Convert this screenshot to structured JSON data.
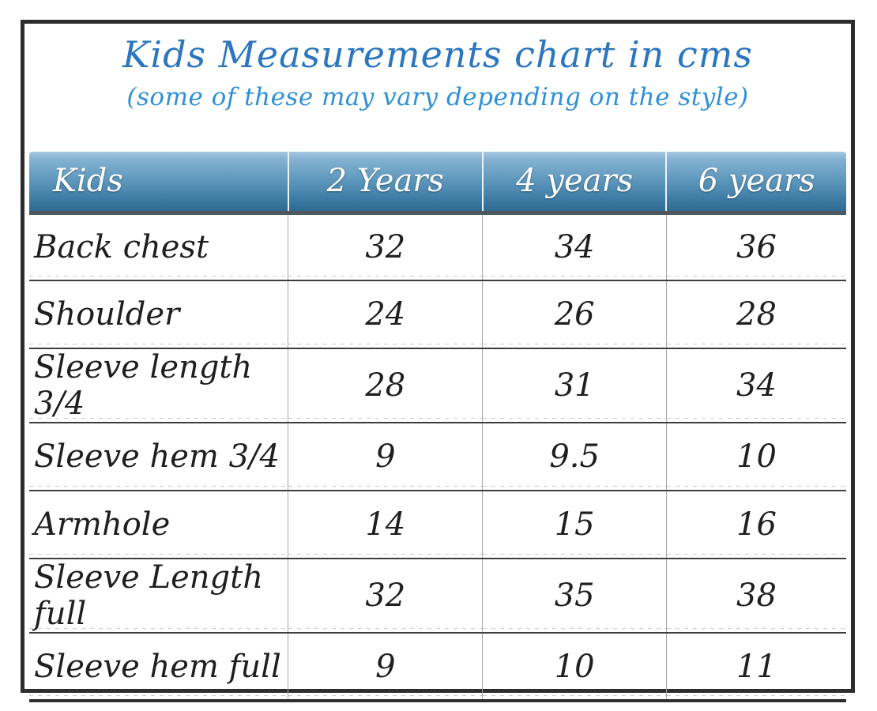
{
  "title": "Kids Measurements chart in cms",
  "subtitle": "(some of these may vary depending on the style)",
  "units": "cms",
  "colors": {
    "title_text": "#2b76bf",
    "subtitle_text": "#3090d6",
    "header_gradient_top": "#a5c8df",
    "header_gradient_bottom": "#2e6a92",
    "header_bottom_strip": "#4e575e",
    "header_text": "#fdfdfd",
    "body_text": "#1f1f1f",
    "row_separator": "#3f3f3f",
    "column_separator": "#a6a6a6",
    "frame_border": "#2d2d2d"
  },
  "chart_data": {
    "type": "table",
    "title": "Kids Measurements chart in cms",
    "subtitle": "(some of these may vary depending on the style)",
    "columns": [
      "Kids",
      "2 Years",
      "4 years",
      "6 years"
    ],
    "rows": [
      {
        "label": "Back chest",
        "values": [
          32,
          34,
          36
        ]
      },
      {
        "label": "Shoulder",
        "values": [
          24,
          26,
          28
        ]
      },
      {
        "label": "Sleeve length 3/4",
        "values": [
          28,
          31,
          34
        ]
      },
      {
        "label": "Sleeve hem 3/4",
        "values": [
          9,
          9.5,
          10
        ]
      },
      {
        "label": "Armhole",
        "values": [
          14,
          15,
          16
        ]
      },
      {
        "label": "Sleeve Length full",
        "values": [
          32,
          35,
          38
        ]
      },
      {
        "label": "Sleeve hem full",
        "values": [
          9,
          10,
          11
        ]
      }
    ]
  }
}
